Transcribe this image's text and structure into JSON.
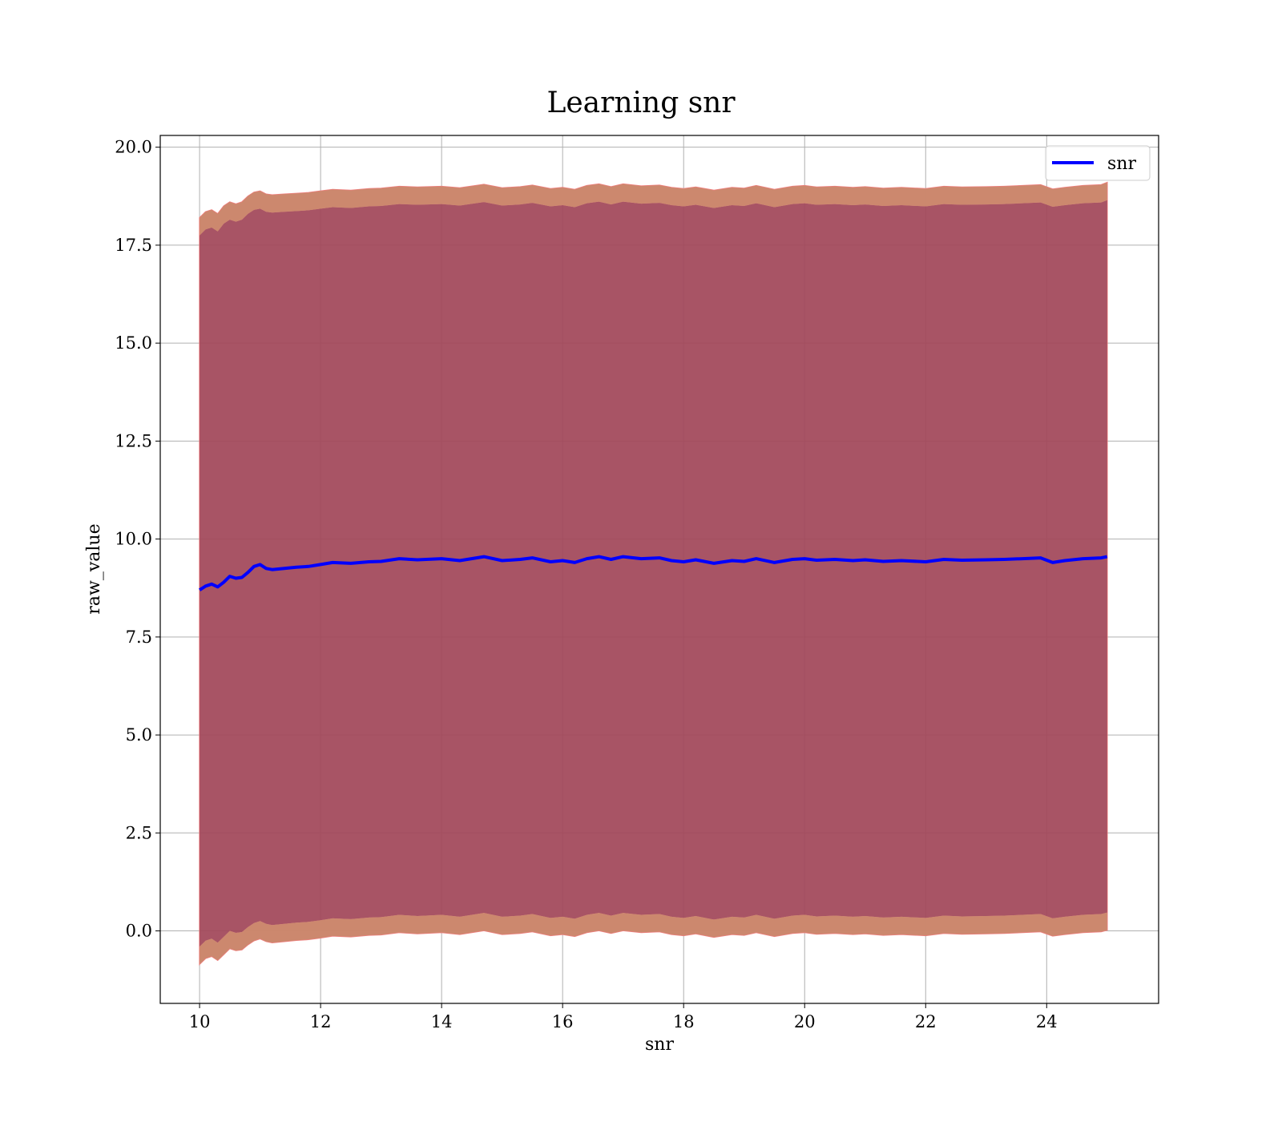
{
  "chart_data": {
    "type": "line",
    "title": "Learning snr",
    "xlabel": "snr",
    "ylabel": "raw_value",
    "xlim": [
      9.35,
      25.85
    ],
    "ylim": [
      -1.85,
      20.3
    ],
    "xticks": [
      10,
      12,
      14,
      16,
      18,
      20,
      22,
      24
    ],
    "xtick_labels": [
      "10",
      "12",
      "14",
      "16",
      "18",
      "20",
      "22",
      "24"
    ],
    "yticks": [
      0.0,
      2.5,
      5.0,
      7.5,
      10.0,
      12.5,
      15.0,
      17.5,
      20.0
    ],
    "ytick_labels": [
      "0.0",
      "2.5",
      "5.0",
      "7.5",
      "10.0",
      "12.5",
      "15.0",
      "17.5",
      "20.0"
    ],
    "grid": true,
    "legend_position": "top-right",
    "series": [
      {
        "name": "snr",
        "color": "#0000ff",
        "x": [
          10.0,
          10.1,
          10.2,
          10.3,
          10.4,
          10.5,
          10.6,
          10.7,
          10.8,
          10.9,
          11.0,
          11.1,
          11.2,
          11.4,
          11.6,
          11.8,
          12.0,
          12.2,
          12.5,
          12.8,
          13.0,
          13.3,
          13.6,
          14.0,
          14.3,
          14.7,
          15.0,
          15.3,
          15.5,
          15.8,
          16.0,
          16.2,
          16.4,
          16.6,
          16.8,
          17.0,
          17.3,
          17.6,
          17.8,
          18.0,
          18.2,
          18.5,
          18.8,
          19.0,
          19.2,
          19.5,
          19.8,
          20.0,
          20.2,
          20.5,
          20.8,
          21.0,
          21.3,
          21.6,
          22.0,
          22.3,
          22.6,
          23.0,
          23.3,
          23.6,
          23.9,
          24.1,
          24.3,
          24.6,
          24.9,
          25.0
        ],
        "y": [
          8.7,
          8.8,
          8.85,
          8.78,
          8.9,
          9.05,
          9.0,
          9.02,
          9.15,
          9.3,
          9.35,
          9.25,
          9.22,
          9.25,
          9.28,
          9.3,
          9.35,
          9.4,
          9.38,
          9.42,
          9.43,
          9.5,
          9.47,
          9.5,
          9.45,
          9.55,
          9.45,
          9.48,
          9.52,
          9.42,
          9.45,
          9.4,
          9.5,
          9.55,
          9.48,
          9.55,
          9.5,
          9.52,
          9.45,
          9.42,
          9.47,
          9.38,
          9.45,
          9.43,
          9.5,
          9.4,
          9.48,
          9.5,
          9.46,
          9.48,
          9.45,
          9.47,
          9.43,
          9.45,
          9.42,
          9.48,
          9.46,
          9.47,
          9.48,
          9.5,
          9.52,
          9.4,
          9.45,
          9.5,
          9.52,
          9.55
        ],
        "outer_band": {
          "color": "#f08080",
          "upper": [
            18.2,
            18.35,
            18.4,
            18.3,
            18.5,
            18.6,
            18.55,
            18.6,
            18.75,
            18.85,
            18.88,
            18.8,
            18.78,
            18.8,
            18.82,
            18.84,
            18.88,
            18.92,
            18.9,
            18.94,
            18.95,
            19.0,
            18.98,
            19.0,
            18.96,
            19.05,
            18.96,
            18.99,
            19.03,
            18.94,
            18.97,
            18.92,
            19.02,
            19.06,
            18.99,
            19.06,
            19.01,
            19.03,
            18.97,
            18.94,
            18.98,
            18.9,
            18.97,
            18.95,
            19.02,
            18.92,
            19.0,
            19.02,
            18.98,
            19.0,
            18.97,
            18.99,
            18.95,
            18.97,
            18.94,
            19.0,
            18.98,
            18.99,
            19.0,
            19.02,
            19.04,
            18.93,
            18.97,
            19.02,
            19.04,
            19.1
          ],
          "lower": [
            -0.85,
            -0.7,
            -0.65,
            -0.75,
            -0.6,
            -0.45,
            -0.5,
            -0.48,
            -0.35,
            -0.25,
            -0.2,
            -0.27,
            -0.3,
            -0.27,
            -0.24,
            -0.22,
            -0.18,
            -0.13,
            -0.15,
            -0.11,
            -0.1,
            -0.04,
            -0.07,
            -0.04,
            -0.09,
            0.01,
            -0.09,
            -0.06,
            -0.02,
            -0.12,
            -0.09,
            -0.14,
            -0.04,
            0.01,
            -0.06,
            0.01,
            -0.04,
            -0.02,
            -0.09,
            -0.12,
            -0.07,
            -0.16,
            -0.09,
            -0.11,
            -0.04,
            -0.14,
            -0.06,
            -0.04,
            -0.08,
            -0.06,
            -0.09,
            -0.07,
            -0.11,
            -0.09,
            -0.12,
            -0.06,
            -0.08,
            -0.07,
            -0.06,
            -0.04,
            -0.02,
            -0.13,
            -0.09,
            -0.04,
            -0.02,
            0.02
          ]
        },
        "inner_band": {
          "color": "#6b2140",
          "upper": [
            17.75,
            17.9,
            17.95,
            17.85,
            18.05,
            18.15,
            18.1,
            18.15,
            18.3,
            18.4,
            18.43,
            18.35,
            18.33,
            18.35,
            18.37,
            18.39,
            18.43,
            18.47,
            18.45,
            18.49,
            18.5,
            18.55,
            18.53,
            18.55,
            18.51,
            18.6,
            18.51,
            18.54,
            18.58,
            18.49,
            18.52,
            18.47,
            18.57,
            18.61,
            18.54,
            18.61,
            18.56,
            18.58,
            18.52,
            18.49,
            18.53,
            18.45,
            18.52,
            18.5,
            18.57,
            18.47,
            18.55,
            18.57,
            18.53,
            18.55,
            18.52,
            18.54,
            18.5,
            18.52,
            18.49,
            18.55,
            18.53,
            18.54,
            18.55,
            18.57,
            18.59,
            18.48,
            18.52,
            18.57,
            18.59,
            18.65
          ],
          "lower": [
            -0.4,
            -0.25,
            -0.2,
            -0.3,
            -0.15,
            0.0,
            -0.05,
            -0.03,
            0.1,
            0.2,
            0.25,
            0.18,
            0.15,
            0.18,
            0.21,
            0.23,
            0.27,
            0.32,
            0.3,
            0.34,
            0.35,
            0.41,
            0.38,
            0.41,
            0.36,
            0.46,
            0.36,
            0.39,
            0.43,
            0.33,
            0.36,
            0.31,
            0.41,
            0.46,
            0.39,
            0.46,
            0.41,
            0.43,
            0.36,
            0.33,
            0.38,
            0.29,
            0.36,
            0.34,
            0.41,
            0.31,
            0.39,
            0.41,
            0.37,
            0.39,
            0.36,
            0.38,
            0.34,
            0.36,
            0.33,
            0.39,
            0.37,
            0.38,
            0.39,
            0.41,
            0.43,
            0.32,
            0.36,
            0.41,
            0.43,
            0.47
          ]
        }
      }
    ]
  }
}
